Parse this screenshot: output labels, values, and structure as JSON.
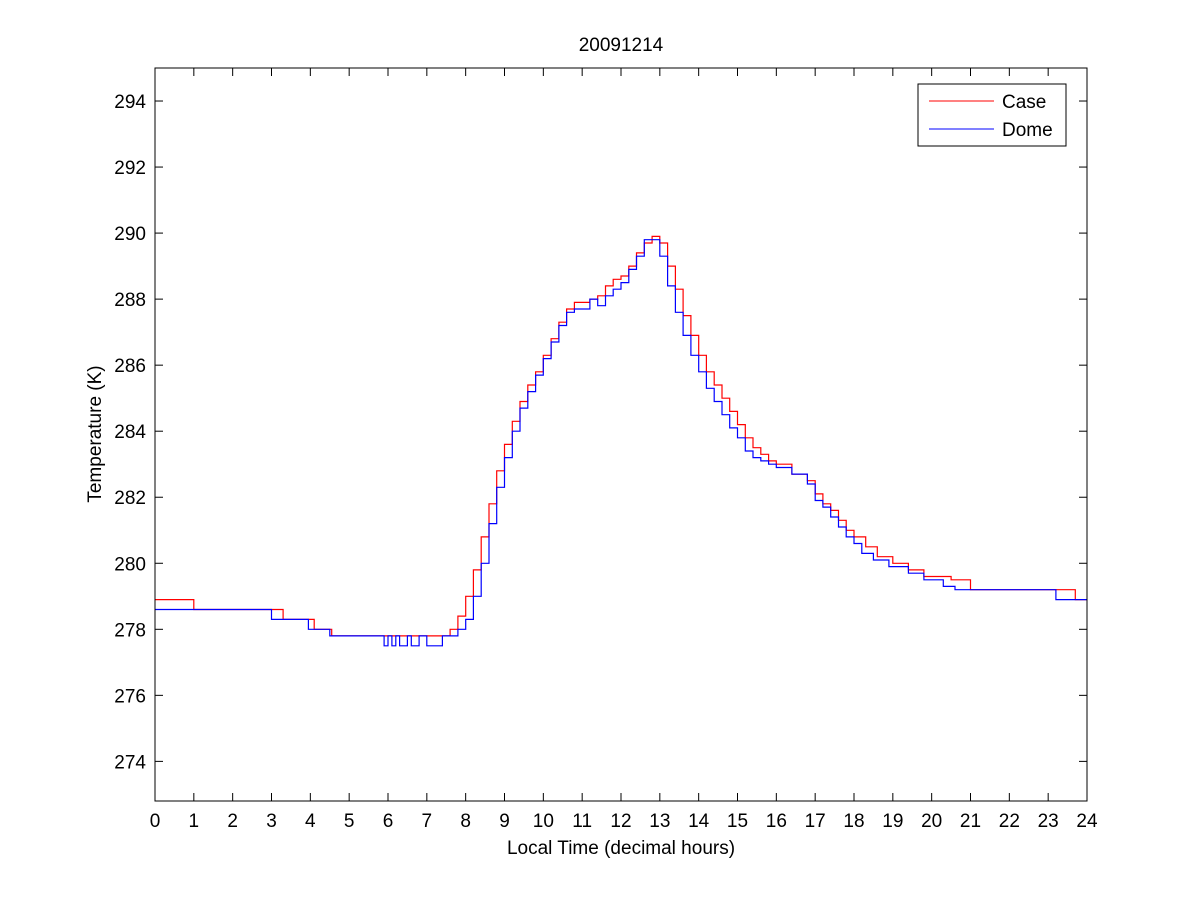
{
  "chart_data": {
    "type": "line",
    "title": "20091214",
    "xlabel": "Local Time (decimal hours)",
    "ylabel": "Temperature (K)",
    "xlim": [
      0,
      24
    ],
    "ylim": [
      272.8,
      295
    ],
    "xticks": [
      0,
      1,
      2,
      3,
      4,
      5,
      6,
      7,
      8,
      9,
      10,
      11,
      12,
      13,
      14,
      15,
      16,
      17,
      18,
      19,
      20,
      21,
      22,
      23,
      24
    ],
    "yticks": [
      274,
      276,
      278,
      280,
      282,
      284,
      286,
      288,
      290,
      292,
      294
    ],
    "grid": false,
    "legend_position": "top-right",
    "series": [
      {
        "name": "Case",
        "color": "#ff0000",
        "x": [
          0,
          1.0,
          1.0,
          3.3,
          3.3,
          4.1,
          4.1,
          4.55,
          4.55,
          7.2,
          7.2,
          7.6,
          7.8,
          8.0,
          8.2,
          8.4,
          8.6,
          8.8,
          9.0,
          9.2,
          9.4,
          9.6,
          9.8,
          10.0,
          10.2,
          10.4,
          10.6,
          10.8,
          11.0,
          11.2,
          11.4,
          11.6,
          11.8,
          12.0,
          12.2,
          12.4,
          12.6,
          12.8,
          13.0,
          13.2,
          13.4,
          13.6,
          13.8,
          14.0,
          14.2,
          14.4,
          14.6,
          14.8,
          15.0,
          15.2,
          15.4,
          15.6,
          15.8,
          16.0,
          16.4,
          16.8,
          17.0,
          17.2,
          17.4,
          17.6,
          17.8,
          18.0,
          18.3,
          18.6,
          19.0,
          19.4,
          19.8,
          20.5,
          21.0,
          21.0,
          23.7,
          23.7,
          24.0
        ],
        "y": [
          278.9,
          278.9,
          278.6,
          278.6,
          278.3,
          278.3,
          278.0,
          278.0,
          277.8,
          277.8,
          277.8,
          278.0,
          278.4,
          279.0,
          279.8,
          280.8,
          281.8,
          282.8,
          283.6,
          284.3,
          284.9,
          285.4,
          285.8,
          286.3,
          286.8,
          287.3,
          287.7,
          287.9,
          287.9,
          288.0,
          288.1,
          288.4,
          288.6,
          288.7,
          289.0,
          289.4,
          289.7,
          289.9,
          289.7,
          289.0,
          288.3,
          287.5,
          286.9,
          286.3,
          285.8,
          285.4,
          285.0,
          284.6,
          284.2,
          283.8,
          283.5,
          283.3,
          283.1,
          283.0,
          282.7,
          282.5,
          282.1,
          281.8,
          281.6,
          281.3,
          281.0,
          280.8,
          280.5,
          280.2,
          280.0,
          279.8,
          279.6,
          279.5,
          279.5,
          279.2,
          279.2,
          278.9,
          278.9
        ]
      },
      {
        "name": "Dome",
        "color": "#0000ff",
        "x": [
          0,
          3.0,
          3.0,
          3.95,
          3.95,
          4.5,
          4.5,
          5.8,
          5.9,
          6.0,
          6.1,
          6.2,
          6.3,
          6.5,
          6.6,
          6.8,
          7.0,
          7.2,
          7.4,
          7.6,
          7.8,
          8.0,
          8.2,
          8.4,
          8.6,
          8.8,
          9.0,
          9.2,
          9.4,
          9.6,
          9.8,
          10.0,
          10.2,
          10.4,
          10.6,
          10.8,
          11.0,
          11.2,
          11.4,
          11.6,
          11.8,
          12.0,
          12.2,
          12.4,
          12.6,
          12.8,
          13.0,
          13.2,
          13.4,
          13.6,
          13.8,
          14.0,
          14.2,
          14.4,
          14.6,
          14.8,
          15.0,
          15.2,
          15.4,
          15.6,
          15.8,
          16.0,
          16.4,
          16.8,
          17.0,
          17.2,
          17.4,
          17.6,
          17.8,
          18.0,
          18.2,
          18.5,
          18.9,
          19.4,
          19.8,
          20.3,
          20.6,
          20.6,
          23.2,
          23.2,
          24.0
        ],
        "y": [
          278.6,
          278.6,
          278.3,
          278.3,
          278.0,
          278.0,
          277.8,
          277.8,
          277.5,
          277.8,
          277.5,
          277.8,
          277.5,
          277.8,
          277.5,
          277.8,
          277.5,
          277.5,
          277.8,
          277.8,
          278.0,
          278.3,
          279.0,
          280.0,
          281.2,
          282.3,
          283.2,
          284.0,
          284.7,
          285.2,
          285.7,
          286.2,
          286.7,
          287.2,
          287.6,
          287.7,
          287.7,
          288.0,
          287.8,
          288.1,
          288.3,
          288.5,
          288.9,
          289.3,
          289.8,
          289.8,
          289.3,
          288.4,
          287.6,
          286.9,
          286.3,
          285.8,
          285.3,
          284.9,
          284.5,
          284.1,
          283.8,
          283.4,
          283.2,
          283.1,
          283.0,
          282.9,
          282.7,
          282.4,
          281.9,
          281.7,
          281.4,
          281.1,
          280.8,
          280.6,
          280.3,
          280.1,
          279.9,
          279.7,
          279.5,
          279.3,
          279.2,
          279.2,
          279.2,
          278.9,
          278.9
        ]
      }
    ]
  }
}
